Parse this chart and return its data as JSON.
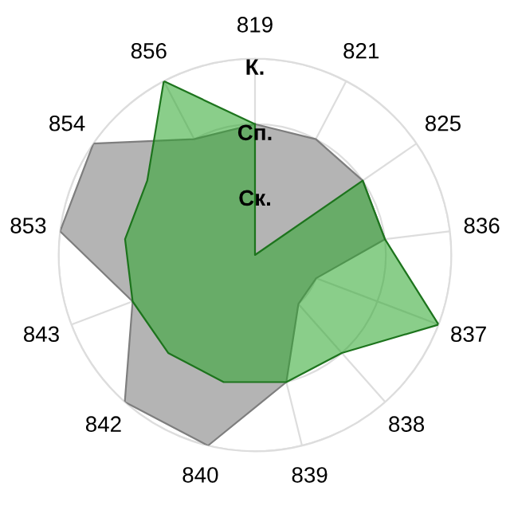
{
  "chart_data": {
    "type": "radar",
    "categories": [
      "819",
      "821",
      "825",
      "836",
      "837",
      "838",
      "839",
      "840",
      "842",
      "843",
      "853",
      "854",
      "856"
    ],
    "series": [
      {
        "color": "#b4b4b4",
        "values": [
          2,
          2,
          2,
          2,
          1,
          1,
          2,
          3,
          3,
          2,
          3,
          3,
          2
        ]
      },
      {
        "color": "#2aa52a",
        "values": [
          2,
          0,
          2,
          2,
          3,
          2,
          2,
          2,
          2,
          2,
          2,
          2,
          3
        ]
      }
    ],
    "ylim": [
      0,
      3
    ],
    "yticks": [
      {
        "value": 1,
        "label": "Ск."
      },
      {
        "value": 2,
        "label": "Сп."
      },
      {
        "value": 3,
        "label": "К."
      }
    ],
    "grid": true,
    "legend": false
  }
}
